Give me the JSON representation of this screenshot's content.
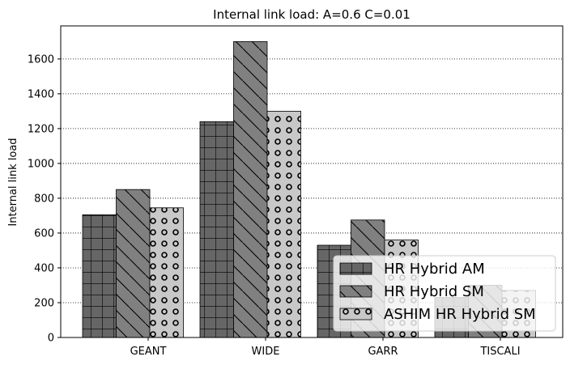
{
  "chart_data": {
    "type": "bar",
    "title": "Internal link load: A=0.6 C=0.01",
    "xlabel": "",
    "ylabel": "Internal link load",
    "categories": [
      "GEANT",
      "WIDE",
      "GARR",
      "TISCALI"
    ],
    "ylim": [
      0,
      1790
    ],
    "yticks": [
      0,
      200,
      400,
      600,
      800,
      1000,
      1200,
      1400,
      1600
    ],
    "grid": "horizontal-dotted",
    "legend_position": "lower-right",
    "series": [
      {
        "name": "HR Hybrid AM",
        "values": [
          705,
          1240,
          530,
          230
        ],
        "color": "#666666",
        "hatch": "grid"
      },
      {
        "name": "HR Hybrid SM",
        "values": [
          850,
          1700,
          675,
          300
        ],
        "color": "#808080",
        "hatch": "diagonal"
      },
      {
        "name": "ASHIM HR Hybrid SM",
        "values": [
          745,
          1300,
          560,
          270
        ],
        "color": "#c8c8c8",
        "hatch": "circles"
      }
    ]
  }
}
